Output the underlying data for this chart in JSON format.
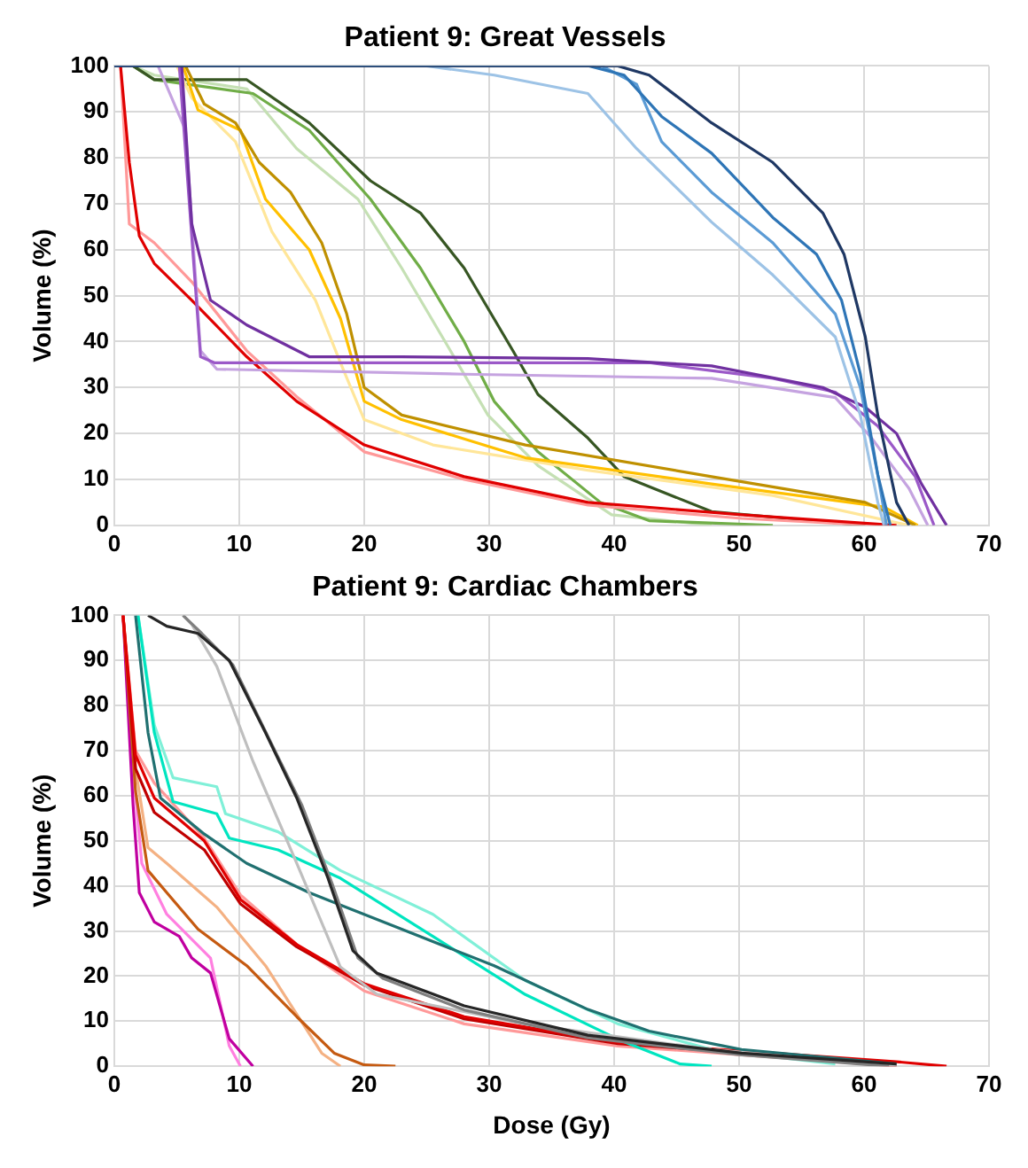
{
  "chart_data": [
    {
      "type": "line",
      "title": "Patient 9: Great Vessels",
      "ylabel": "Volume (%)",
      "xlim": [
        0,
        70
      ],
      "xticks": [
        0,
        10,
        20,
        30,
        40,
        50,
        60,
        70
      ],
      "ylim": [
        0,
        100
      ],
      "yticks": [
        0,
        10,
        20,
        30,
        40,
        50,
        60,
        70,
        80,
        90,
        100
      ],
      "grid": true,
      "legend": false,
      "marker": "none",
      "line_style": "solid",
      "series": [
        {
          "color": "#1f3864",
          "x": [
            0,
            40.3,
            42.8,
            47.8,
            52.7,
            56.7,
            58.4,
            60.1,
            61.1,
            62.6,
            63.6
          ],
          "values": [
            100,
            100,
            98,
            87.6,
            79,
            68,
            59,
            41,
            24,
            5,
            0
          ]
        },
        {
          "color": "#2e75b6",
          "x": [
            0,
            38,
            40.8,
            43.8,
            47.8,
            52.7,
            56.2,
            58.2,
            59.7,
            61.1,
            62.1
          ],
          "values": [
            100,
            100,
            98,
            89,
            81,
            67,
            59,
            49,
            33,
            11,
            0
          ]
        },
        {
          "color": "#5b9bd5",
          "x": [
            0,
            39,
            41.8,
            43.8,
            47.8,
            52.7,
            57.7,
            59.7,
            61.1,
            61.8
          ],
          "values": [
            100,
            100,
            96,
            83.5,
            72.5,
            61.5,
            46,
            30,
            11,
            0
          ]
        },
        {
          "color": "#9dc3e6",
          "x": [
            0,
            25,
            30.4,
            37.9,
            41.8,
            47.8,
            52.7,
            57.7,
            59.7,
            61.1,
            61.6
          ],
          "values": [
            100,
            100,
            98,
            94,
            82,
            66,
            54.5,
            41,
            24,
            5,
            0
          ]
        },
        {
          "color": "#7030a0",
          "x": [
            0,
            5.4,
            6.2,
            7.7,
            10.6,
            15.6,
            23,
            37.9,
            47.8,
            56.7,
            60.1,
            62.6,
            64.6,
            66.6
          ],
          "values": [
            100,
            100,
            65.6,
            49,
            43.6,
            36.7,
            36.7,
            36.3,
            34.7,
            30,
            25.7,
            20,
            9,
            0
          ]
        },
        {
          "color": "#9b59c8",
          "x": [
            0,
            5.2,
            6.9,
            8,
            42.8,
            52.7,
            57.7,
            61.1,
            64.1,
            65.6
          ],
          "values": [
            100,
            100,
            36.7,
            35.4,
            35.4,
            32,
            29,
            21.6,
            10.6,
            0
          ]
        },
        {
          "color": "#c5a3e0",
          "x": [
            0,
            3.5,
            5.7,
            6.9,
            8.2,
            28,
            47.8,
            57.7,
            60.6,
            63.6,
            65.1
          ],
          "values": [
            100,
            100,
            86,
            38,
            34,
            32.9,
            32,
            27.8,
            19,
            8,
            0
          ]
        },
        {
          "color": "#e00000",
          "x": [
            0.5,
            1.2,
            2,
            3.2,
            6.2,
            10.6,
            14.6,
            20,
            28,
            37.9,
            50.2,
            62.6
          ],
          "values": [
            100,
            79,
            63,
            57,
            49,
            36.7,
            27,
            17.5,
            10.6,
            5,
            2.3,
            0
          ]
        },
        {
          "color": "#ff9999",
          "x": [
            0.5,
            1.2,
            3.2,
            6.2,
            10.6,
            14.6,
            20,
            28,
            37.9,
            50.2,
            61
          ],
          "values": [
            100,
            65.6,
            61.5,
            53,
            38,
            28,
            16,
            10,
            4.4,
            1.5,
            0
          ]
        },
        {
          "color": "#bf9000",
          "x": [
            0,
            5.7,
            7.2,
            9.7,
            11.6,
            14.1,
            16.6,
            18.6,
            20,
            23,
            32.9,
            47.8,
            60.1,
            64.1
          ],
          "values": [
            100,
            100,
            91.7,
            87.6,
            79,
            72.5,
            61.5,
            46,
            30,
            24,
            17.5,
            10.6,
            5,
            0
          ]
        },
        {
          "color": "#ffc000",
          "x": [
            0,
            5.5,
            6.7,
            10.1,
            12.1,
            15.6,
            18.1,
            20,
            23,
            32.9,
            47.8,
            61.6,
            64.3
          ],
          "values": [
            100,
            100,
            90.4,
            86,
            71,
            60,
            45,
            27,
            23,
            14.7,
            9,
            4,
            0
          ]
        },
        {
          "color": "#ffe699",
          "x": [
            0,
            5,
            6.2,
            9.7,
            12.6,
            16.1,
            18.1,
            20,
            25.5,
            37.9,
            52.7,
            63.6
          ],
          "values": [
            100,
            100,
            93,
            83.5,
            64,
            49,
            35.4,
            23,
            17.5,
            12,
            6.5,
            0
          ]
        },
        {
          "color": "#375623",
          "x": [
            1.5,
            3.2,
            10.6,
            15.6,
            20.5,
            24.5,
            28,
            31.9,
            33.9,
            37.9,
            40.8,
            47.8,
            60.1
          ],
          "values": [
            100,
            97,
            97,
            87.6,
            75,
            68,
            56,
            38,
            28.5,
            19,
            10.6,
            3,
            0
          ]
        },
        {
          "color": "#70ad47",
          "x": [
            1.5,
            3.2,
            11.1,
            15.6,
            20.5,
            24.5,
            28,
            30.4,
            33.9,
            38.9,
            42.8,
            52.7
          ],
          "values": [
            100,
            97,
            94,
            86,
            71,
            56,
            40,
            27,
            16,
            5,
            1,
            0
          ]
        },
        {
          "color": "#c5e0b4",
          "x": [
            1.5,
            3.2,
            10.6,
            14.6,
            19.5,
            23,
            26.9,
            29.9,
            33.9,
            39.8,
            47.8
          ],
          "values": [
            100,
            98,
            95,
            82,
            71,
            56,
            38,
            24,
            13,
            2.3,
            0
          ]
        }
      ]
    },
    {
      "type": "line",
      "title": "Patient 9: Cardiac Chambers",
      "xlabel": "Dose (Gy)",
      "ylabel": "Volume (%)",
      "xlim": [
        0,
        70
      ],
      "xticks": [
        0,
        10,
        20,
        30,
        40,
        50,
        60,
        70
      ],
      "ylim": [
        0,
        100
      ],
      "yticks": [
        0,
        10,
        20,
        30,
        40,
        50,
        60,
        70,
        80,
        90,
        100
      ],
      "grid": true,
      "legend": false,
      "marker": "none",
      "line_style": "solid",
      "series": [
        {
          "color": "#262626",
          "x": [
            2.7,
            4.2,
            6.7,
            9.2,
            12.1,
            14.6,
            17.1,
            19.1,
            21,
            28,
            37.9,
            50.2,
            62.6
          ],
          "values": [
            100,
            97.6,
            96,
            90,
            74,
            59.5,
            41.7,
            25.6,
            20.7,
            13.4,
            6.9,
            2.9,
            0.5
          ]
        },
        {
          "color": "#808080",
          "x": [
            5.5,
            7,
            9.5,
            12.5,
            15,
            17.5,
            19.5,
            21.5,
            28,
            37.9,
            50.2,
            62
          ],
          "values": [
            100,
            96,
            89,
            72,
            58,
            40,
            24,
            19.5,
            12.5,
            6.3,
            2.5,
            0
          ]
        },
        {
          "color": "#bfbfbf",
          "x": [
            5.5,
            6.2,
            8.2,
            11.1,
            14.6,
            18.1,
            21,
            32.9,
            47.8,
            62.6
          ],
          "values": [
            100,
            98,
            88.7,
            67.6,
            45,
            22,
            16,
            9.4,
            3.7,
            0
          ]
        },
        {
          "color": "#207070",
          "x": [
            1.7,
            2.7,
            3.7,
            7.2,
            10.6,
            15.6,
            23,
            30.4,
            37.9,
            42.8,
            50.2,
            62.6
          ],
          "values": [
            100,
            74,
            59.5,
            51.5,
            45,
            38.5,
            30.4,
            22.3,
            12.6,
            7.8,
            3.7,
            0.5
          ]
        },
        {
          "color": "#00e5c0",
          "x": [
            1.9,
            3.2,
            4.7,
            8.2,
            9.2,
            13.1,
            18.1,
            25.5,
            32.9,
            40.3,
            45.3,
            47.8
          ],
          "values": [
            100,
            74,
            58.7,
            56,
            50.6,
            48,
            41.7,
            28.8,
            15.9,
            6,
            0.5,
            0
          ]
        },
        {
          "color": "#80f0d8",
          "x": [
            1.9,
            3.2,
            4.7,
            8.2,
            8.9,
            13.1,
            18.1,
            25.5,
            32.9,
            40.3,
            47.8,
            57.7
          ],
          "values": [
            100,
            75.7,
            64,
            62,
            56,
            52,
            43.4,
            33.7,
            19,
            9.4,
            3.7,
            0.5
          ]
        },
        {
          "color": "#e00000",
          "x": [
            0.7,
            1.7,
            3.2,
            7.2,
            10.1,
            14.6,
            20,
            28,
            40.3,
            52.7,
            62.6,
            66.6
          ],
          "values": [
            100,
            69,
            59.5,
            50,
            37,
            27,
            18.3,
            11,
            5.3,
            2.9,
            1,
            0
          ]
        },
        {
          "color": "#c00000",
          "x": [
            0.7,
            1.7,
            3.2,
            7.2,
            10.1,
            14.6,
            20,
            28,
            40.3,
            52.7,
            62.6
          ],
          "values": [
            100,
            66,
            56.3,
            48,
            36,
            26.5,
            18,
            10.5,
            5,
            2.5,
            0
          ]
        },
        {
          "color": "#ff9999",
          "x": [
            0.7,
            1.7,
            3.2,
            7.2,
            10.1,
            14.6,
            20,
            28,
            40.3,
            52.7,
            62.6
          ],
          "values": [
            100,
            70,
            62.8,
            50.6,
            38,
            27,
            16.7,
            9.4,
            4.5,
            2,
            0
          ]
        },
        {
          "color": "#c55a11",
          "x": [
            0.7,
            1.7,
            2.7,
            4.2,
            6.7,
            10.6,
            14.6,
            17.6,
            20,
            22.5
          ],
          "values": [
            100,
            61,
            43.4,
            38.5,
            30.4,
            22.3,
            11,
            2.9,
            0.3,
            0
          ]
        },
        {
          "color": "#f4b183",
          "x": [
            0.7,
            1.7,
            2.7,
            4.2,
            8.2,
            12.1,
            16.6,
            18.1
          ],
          "values": [
            100,
            66,
            48.5,
            45,
            35.3,
            22.3,
            2.9,
            0
          ]
        },
        {
          "color": "#c000a0",
          "x": [
            0.7,
            1.5,
            2,
            3.2,
            5.2,
            6.2,
            7.7,
            9.2,
            11.1
          ],
          "values": [
            100,
            58,
            38.5,
            32,
            28.8,
            24,
            20.7,
            6.1,
            0
          ]
        },
        {
          "color": "#ff80e0",
          "x": [
            0.7,
            1.5,
            2.2,
            4.2,
            7.7,
            9.2,
            10.1
          ],
          "values": [
            100,
            66,
            45,
            33.7,
            24,
            4.5,
            0
          ]
        }
      ]
    }
  ]
}
